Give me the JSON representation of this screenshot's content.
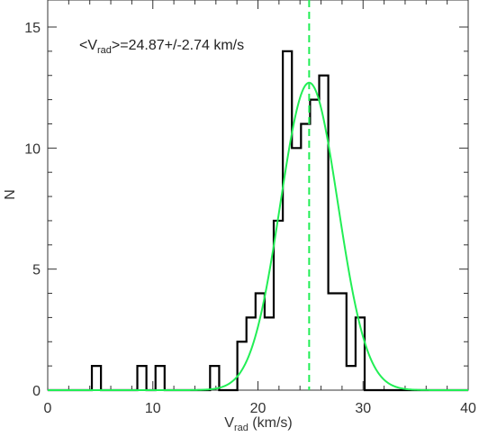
{
  "chart_data": {
    "type": "bar",
    "title": "",
    "xlabel": {
      "main": "V",
      "sub": "rad",
      "suffix": " (km/s)"
    },
    "ylabel": "N",
    "xlim": [
      0,
      40
    ],
    "ylim": [
      0,
      15
    ],
    "xticks": [
      0,
      10,
      20,
      30,
      40
    ],
    "yticks": [
      0,
      5,
      10,
      15
    ],
    "xtick_labels": [
      "0",
      "10",
      "20",
      "30",
      "40"
    ],
    "ytick_labels": [
      "0",
      "5",
      "10",
      "15"
    ],
    "bin_width": 0.865,
    "histogram": {
      "bin_edges": [
        4.2,
        5.065,
        5.93,
        6.795,
        7.66,
        8.525,
        9.39,
        10.255,
        11.12,
        11.985,
        12.85,
        13.715,
        14.58,
        15.445,
        16.31,
        17.175,
        18.04,
        18.905,
        19.77,
        20.635,
        21.5,
        22.365,
        23.23,
        24.095,
        24.96,
        25.825,
        26.69,
        27.555,
        28.42,
        29.285,
        30.15,
        31.015,
        31.88
      ],
      "counts": [
        1,
        0,
        0,
        0,
        0,
        1,
        0,
        1,
        0,
        0,
        0,
        0,
        0,
        1,
        0,
        0,
        2,
        3,
        4,
        3,
        7,
        14,
        10,
        11,
        12,
        13,
        4,
        4,
        1,
        3,
        0,
        0
      ]
    },
    "gaussian_fit": {
      "mean": 24.87,
      "sigma": 2.74,
      "amplitude": 12.7,
      "color": "#22ee55"
    },
    "mean_line": {
      "x": 24.87,
      "style": "dashed",
      "color": "#22ee55"
    },
    "annotation": {
      "open": "<V",
      "sub": "rad",
      "close": ">=24.87+/-2.74 km/s"
    },
    "colors": {
      "histogram": "#000000",
      "axes": "#333333"
    }
  }
}
